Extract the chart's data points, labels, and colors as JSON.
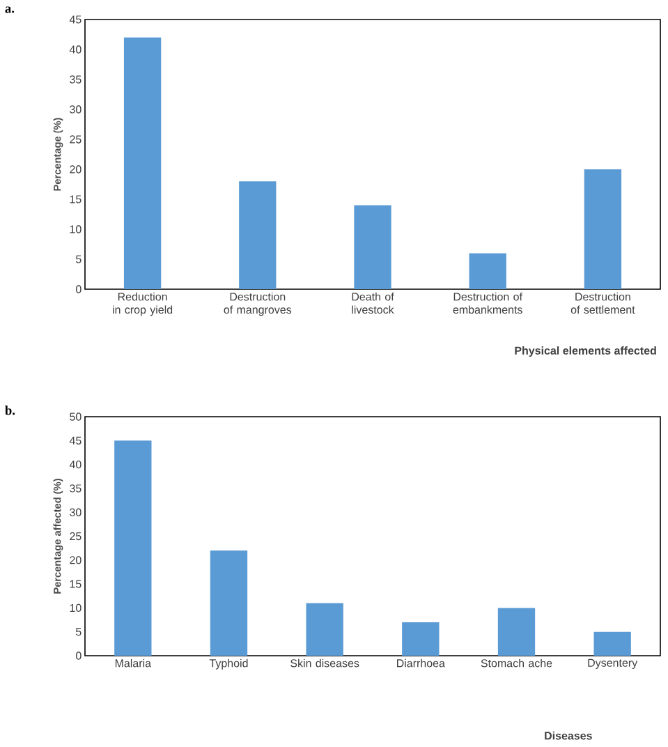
{
  "chart_data": [
    {
      "type": "bar",
      "annotations": [
        "a."
      ],
      "xlabel": "Physical elements affected",
      "ylabel": "Percentage (%)",
      "categories": [
        "Reduction in crop yield",
        "Destruction of mangroves",
        "Death of livestock",
        "Destruction of embankments",
        "Destruction of settlement"
      ],
      "values": [
        42,
        18,
        14,
        6,
        20
      ],
      "color": "#5b9bd5",
      "ylim": [
        0,
        45
      ],
      "yticks": [
        0,
        5,
        10,
        15,
        20,
        25,
        30,
        35,
        40,
        45
      ]
    },
    {
      "type": "bar",
      "annotations": [
        "b."
      ],
      "xlabel": "Diseases",
      "ylabel": "Percentage affected (%)",
      "categories": [
        "Malaria",
        "Typhoid",
        "Skin diseases",
        "Diarrhoea",
        "Stomach ache",
        "Dysentery"
      ],
      "values": [
        45,
        22,
        11,
        7,
        10,
        5
      ],
      "color": "#5b9bd5",
      "ylim": [
        0,
        50
      ],
      "yticks": [
        0,
        5,
        10,
        15,
        20,
        25,
        30,
        35,
        40,
        45,
        50
      ]
    }
  ]
}
